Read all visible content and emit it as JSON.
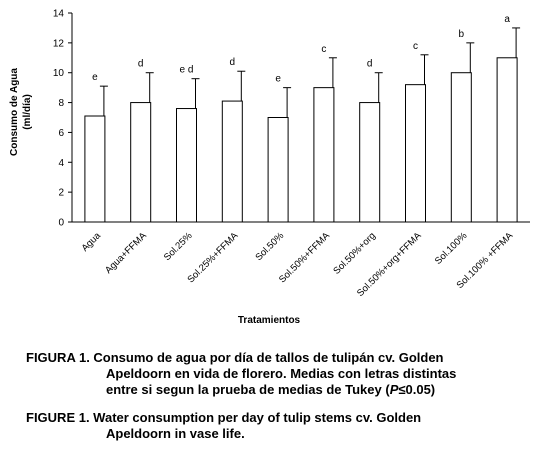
{
  "chart_data": {
    "type": "bar",
    "ylabel_line1": "Consumo de Agua",
    "ylabel_line2": "(ml/día)",
    "xlabel": "Tratamientos",
    "ylim": [
      0,
      14
    ],
    "yticks": [
      "0",
      "2",
      "4",
      "6",
      "8",
      "10",
      "12",
      "14"
    ],
    "categories": [
      "Agua",
      "Agua+FFMA",
      "Sol.25%",
      "Sol.25%+FFMA",
      "Sol.50%",
      "Sol.50%+FFMA",
      "Sol.50%+org",
      "Sol.50%+org+FFMA",
      "Sol.100%",
      "Sol.100% +FFMA"
    ],
    "values": [
      7.1,
      8.0,
      7.6,
      8.1,
      7.0,
      9.0,
      8.0,
      9.2,
      10.0,
      11.0
    ],
    "errors": [
      2.0,
      2.0,
      2.0,
      2.0,
      2.0,
      2.0,
      2.0,
      2.0,
      2.0,
      2.0
    ],
    "letters": [
      "e",
      "d",
      "e d",
      "d",
      "e",
      "c",
      "d",
      "c",
      "b",
      "a"
    ],
    "bar_color": "#ffffff",
    "grid": false
  },
  "caption_es": {
    "lead": "FIGURA 1. Consumo de agua por día de tallos de tulipán cv. Golden",
    "l2": "Apeldoorn en vida de florero. Medias con letras distintas",
    "l3_pre": "entre si segun la prueba de medias de Tukey (",
    "l3_italic": "P",
    "l3_post": "≤0.05)"
  },
  "caption_en": {
    "lead": "FIGURE 1. Water consumption per day of tulip stems cv. Golden",
    "l2": "Apeldoorn in vase life."
  }
}
